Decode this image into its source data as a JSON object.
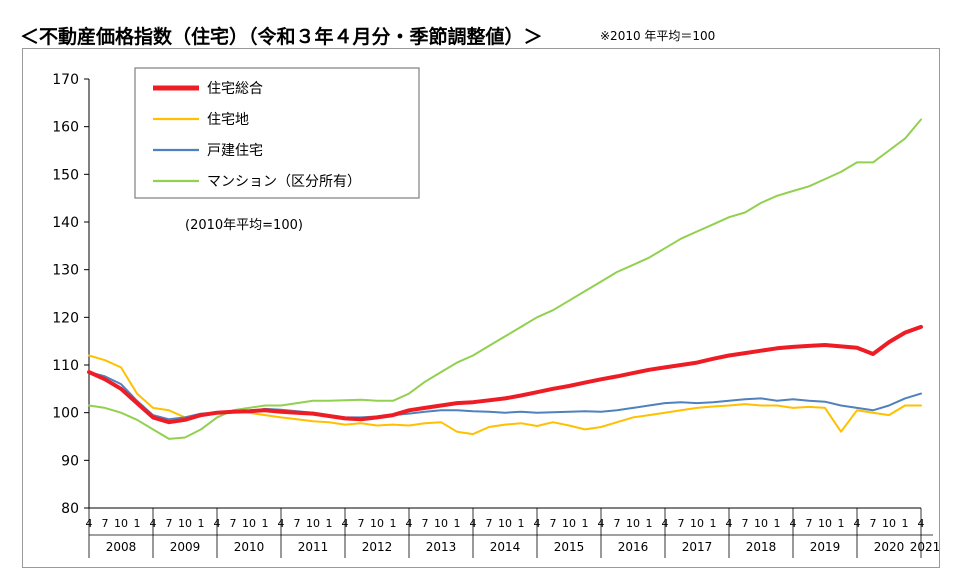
{
  "page": {
    "title": "＜不動産価格指数（住宅）（令和３年４月分・季節調整値）＞",
    "note": "※2010 年平均＝100"
  },
  "chart_data": {
    "type": "line",
    "ylim": [
      80,
      170
    ],
    "yticks": [
      80,
      90,
      100,
      110,
      120,
      130,
      140,
      150,
      160,
      170
    ],
    "grid": false,
    "legend_position": "top-left",
    "annotation": "(2010年平均=100)",
    "month_labels": [
      "4",
      "7",
      "10",
      "1"
    ],
    "years": [
      "2008",
      "2009",
      "2010",
      "2011",
      "2012",
      "2013",
      "2014",
      "2015",
      "2016",
      "2017",
      "2018",
      "2019",
      "2020",
      "2021"
    ],
    "x_start": "2008-04",
    "x_end": "2021-04",
    "series": [
      {
        "name": "住宅総合",
        "color": "#ee1c25",
        "width": 4,
        "points": [
          [
            "2008-04",
            108.5
          ],
          [
            "2008-07",
            107
          ],
          [
            "2008-10",
            105
          ],
          [
            "2009-01",
            102
          ],
          [
            "2009-04",
            99
          ],
          [
            "2009-07",
            98
          ],
          [
            "2009-10",
            98.5
          ],
          [
            "2010-01",
            99.5
          ],
          [
            "2010-04",
            100
          ],
          [
            "2010-07",
            100.2
          ],
          [
            "2010-10",
            100.3
          ],
          [
            "2011-01",
            100.5
          ],
          [
            "2011-04",
            100.2
          ],
          [
            "2011-07",
            100
          ],
          [
            "2011-10",
            99.8
          ],
          [
            "2012-01",
            99.3
          ],
          [
            "2012-04",
            98.8
          ],
          [
            "2012-07",
            98.6
          ],
          [
            "2012-10",
            99
          ],
          [
            "2013-01",
            99.5
          ],
          [
            "2013-04",
            100.5
          ],
          [
            "2013-07",
            101
          ],
          [
            "2013-10",
            101.5
          ],
          [
            "2014-01",
            102
          ],
          [
            "2014-04",
            102.2
          ],
          [
            "2014-07",
            102.6
          ],
          [
            "2014-10",
            103
          ],
          [
            "2015-01",
            103.6
          ],
          [
            "2015-04",
            104.3
          ],
          [
            "2015-07",
            105
          ],
          [
            "2015-10",
            105.6
          ],
          [
            "2016-01",
            106.3
          ],
          [
            "2016-04",
            107
          ],
          [
            "2016-07",
            107.6
          ],
          [
            "2016-10",
            108.3
          ],
          [
            "2017-01",
            109
          ],
          [
            "2017-04",
            109.5
          ],
          [
            "2017-07",
            110
          ],
          [
            "2017-10",
            110.5
          ],
          [
            "2018-01",
            111.3
          ],
          [
            "2018-04",
            112
          ],
          [
            "2018-07",
            112.5
          ],
          [
            "2018-10",
            113
          ],
          [
            "2019-01",
            113.5
          ],
          [
            "2019-04",
            113.8
          ],
          [
            "2019-07",
            114
          ],
          [
            "2019-10",
            114.2
          ],
          [
            "2020-01",
            113.9
          ],
          [
            "2020-04",
            113.6
          ],
          [
            "2020-07",
            112.3
          ],
          [
            "2020-10",
            114.8
          ],
          [
            "2021-01",
            116.8
          ],
          [
            "2021-04",
            118
          ]
        ]
      },
      {
        "name": "住宅地",
        "color": "#ffc000",
        "width": 2,
        "points": [
          [
            "2008-04",
            112
          ],
          [
            "2008-07",
            111
          ],
          [
            "2008-10",
            109.5
          ],
          [
            "2009-01",
            104
          ],
          [
            "2009-04",
            101
          ],
          [
            "2009-07",
            100.5
          ],
          [
            "2009-10",
            99
          ],
          [
            "2010-01",
            99.5
          ],
          [
            "2010-04",
            100
          ],
          [
            "2010-07",
            100.4
          ],
          [
            "2010-10",
            100
          ],
          [
            "2011-01",
            99.5
          ],
          [
            "2011-04",
            99
          ],
          [
            "2011-07",
            98.6
          ],
          [
            "2011-10",
            98.2
          ],
          [
            "2012-01",
            98
          ],
          [
            "2012-04",
            97.5
          ],
          [
            "2012-07",
            97.8
          ],
          [
            "2012-10",
            97.3
          ],
          [
            "2013-01",
            97.5
          ],
          [
            "2013-04",
            97.3
          ],
          [
            "2013-07",
            97.8
          ],
          [
            "2013-10",
            98
          ],
          [
            "2014-01",
            96
          ],
          [
            "2014-04",
            95.5
          ],
          [
            "2014-07",
            97
          ],
          [
            "2014-10",
            97.5
          ],
          [
            "2015-01",
            97.8
          ],
          [
            "2015-04",
            97.2
          ],
          [
            "2015-07",
            98
          ],
          [
            "2015-10",
            97.3
          ],
          [
            "2016-01",
            96.5
          ],
          [
            "2016-04",
            97
          ],
          [
            "2016-07",
            98
          ],
          [
            "2016-10",
            99
          ],
          [
            "2017-01",
            99.5
          ],
          [
            "2017-04",
            100
          ],
          [
            "2017-07",
            100.5
          ],
          [
            "2017-10",
            101
          ],
          [
            "2018-01",
            101.3
          ],
          [
            "2018-04",
            101.5
          ],
          [
            "2018-07",
            101.8
          ],
          [
            "2018-10",
            101.5
          ],
          [
            "2019-01",
            101.5
          ],
          [
            "2019-04",
            101
          ],
          [
            "2019-07",
            101.2
          ],
          [
            "2019-10",
            101
          ],
          [
            "2020-01",
            96
          ],
          [
            "2020-04",
            100.5
          ],
          [
            "2020-07",
            100
          ],
          [
            "2020-10",
            99.5
          ],
          [
            "2021-01",
            101.5
          ],
          [
            "2021-04",
            101.5
          ]
        ]
      },
      {
        "name": "戸建住宅",
        "color": "#4f81bd",
        "width": 2,
        "points": [
          [
            "2008-04",
            108.5
          ],
          [
            "2008-07",
            107.6
          ],
          [
            "2008-10",
            106
          ],
          [
            "2009-01",
            102.5
          ],
          [
            "2009-04",
            99.5
          ],
          [
            "2009-07",
            98.6
          ],
          [
            "2009-10",
            99
          ],
          [
            "2010-01",
            99.8
          ],
          [
            "2010-04",
            100
          ],
          [
            "2010-07",
            100.2
          ],
          [
            "2010-10",
            100.3
          ],
          [
            "2011-01",
            100.8
          ],
          [
            "2011-04",
            100.6
          ],
          [
            "2011-07",
            100.3
          ],
          [
            "2011-10",
            100
          ],
          [
            "2012-01",
            99.5
          ],
          [
            "2012-04",
            99
          ],
          [
            "2012-07",
            99
          ],
          [
            "2012-10",
            99.2
          ],
          [
            "2013-01",
            99.5
          ],
          [
            "2013-04",
            99.8
          ],
          [
            "2013-07",
            100.2
          ],
          [
            "2013-10",
            100.5
          ],
          [
            "2014-01",
            100.5
          ],
          [
            "2014-04",
            100.3
          ],
          [
            "2014-07",
            100.2
          ],
          [
            "2014-10",
            100
          ],
          [
            "2015-01",
            100.2
          ],
          [
            "2015-04",
            100
          ],
          [
            "2015-07",
            100.1
          ],
          [
            "2015-10",
            100.2
          ],
          [
            "2016-01",
            100.3
          ],
          [
            "2016-04",
            100.2
          ],
          [
            "2016-07",
            100.5
          ],
          [
            "2016-10",
            101
          ],
          [
            "2017-01",
            101.5
          ],
          [
            "2017-04",
            102
          ],
          [
            "2017-07",
            102.2
          ],
          [
            "2017-10",
            102
          ],
          [
            "2018-01",
            102.2
          ],
          [
            "2018-04",
            102.5
          ],
          [
            "2018-07",
            102.8
          ],
          [
            "2018-10",
            103
          ],
          [
            "2019-01",
            102.5
          ],
          [
            "2019-04",
            102.8
          ],
          [
            "2019-07",
            102.5
          ],
          [
            "2019-10",
            102.3
          ],
          [
            "2020-01",
            101.5
          ],
          [
            "2020-04",
            101
          ],
          [
            "2020-07",
            100.5
          ],
          [
            "2020-10",
            101.5
          ],
          [
            "2021-01",
            103
          ],
          [
            "2021-04",
            104
          ]
        ]
      },
      {
        "name": "マンション（区分所有）",
        "color": "#92d050",
        "width": 2,
        "points": [
          [
            "2008-04",
            101.5
          ],
          [
            "2008-07",
            101
          ],
          [
            "2008-10",
            100
          ],
          [
            "2009-01",
            98.5
          ],
          [
            "2009-04",
            96.5
          ],
          [
            "2009-07",
            94.5
          ],
          [
            "2009-10",
            94.8
          ],
          [
            "2010-01",
            96.5
          ],
          [
            "2010-04",
            99
          ],
          [
            "2010-07",
            100.5
          ],
          [
            "2010-10",
            101
          ],
          [
            "2011-01",
            101.5
          ],
          [
            "2011-04",
            101.5
          ],
          [
            "2011-07",
            102
          ],
          [
            "2011-10",
            102.5
          ],
          [
            "2012-01",
            102.5
          ],
          [
            "2012-04",
            102.6
          ],
          [
            "2012-07",
            102.7
          ],
          [
            "2012-10",
            102.5
          ],
          [
            "2013-01",
            102.5
          ],
          [
            "2013-04",
            104
          ],
          [
            "2013-07",
            106.5
          ],
          [
            "2013-10",
            108.5
          ],
          [
            "2014-01",
            110.5
          ],
          [
            "2014-04",
            112
          ],
          [
            "2014-07",
            114
          ],
          [
            "2014-10",
            116
          ],
          [
            "2015-01",
            118
          ],
          [
            "2015-04",
            120
          ],
          [
            "2015-07",
            121.5
          ],
          [
            "2015-10",
            123.5
          ],
          [
            "2016-01",
            125.5
          ],
          [
            "2016-04",
            127.5
          ],
          [
            "2016-07",
            129.5
          ],
          [
            "2016-10",
            131
          ],
          [
            "2017-01",
            132.5
          ],
          [
            "2017-04",
            134.5
          ],
          [
            "2017-07",
            136.5
          ],
          [
            "2017-10",
            138
          ],
          [
            "2018-01",
            139.5
          ],
          [
            "2018-04",
            141
          ],
          [
            "2018-07",
            142
          ],
          [
            "2018-10",
            144
          ],
          [
            "2019-01",
            145.5
          ],
          [
            "2019-04",
            146.5
          ],
          [
            "2019-07",
            147.5
          ],
          [
            "2019-10",
            149
          ],
          [
            "2020-01",
            150.5
          ],
          [
            "2020-04",
            152.5
          ],
          [
            "2020-07",
            152.5
          ],
          [
            "2020-10",
            155
          ],
          [
            "2021-01",
            157.5
          ],
          [
            "2021-04",
            161.5
          ]
        ]
      }
    ]
  }
}
